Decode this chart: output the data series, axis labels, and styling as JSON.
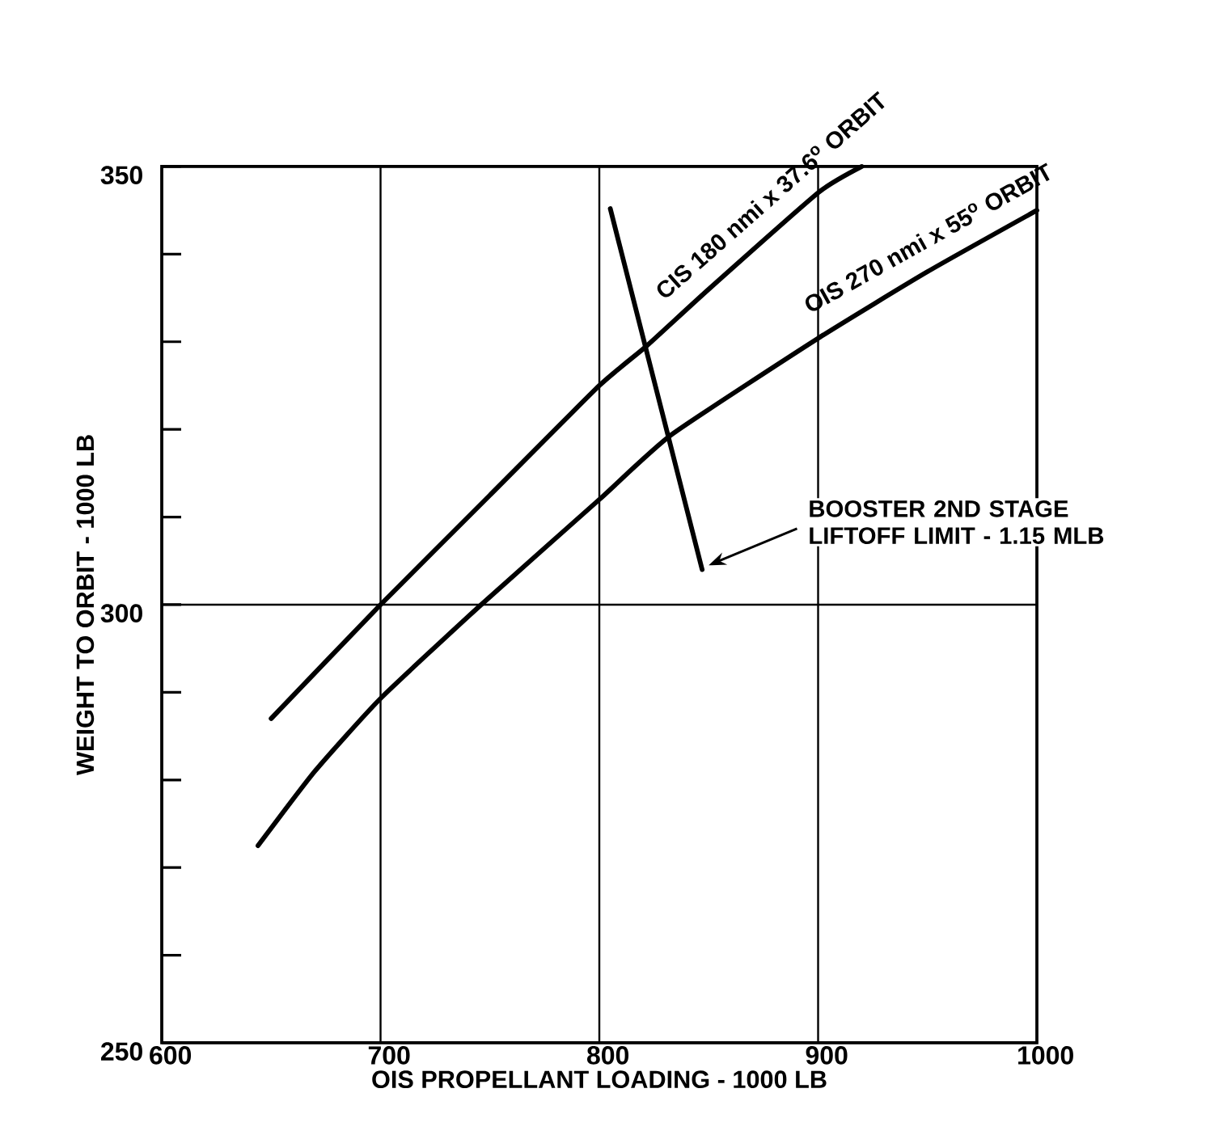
{
  "chart_data": {
    "type": "line",
    "xlabel": "OIS PROPELLANT LOADING - 1000 LB",
    "ylabel": "WEIGHT TO ORBIT - 1000 LB",
    "xlim": [
      600,
      1000
    ],
    "xticks": [
      600,
      700,
      800,
      900,
      1000
    ],
    "ylim": [
      250,
      350
    ],
    "yticks": [
      250,
      {
        "value": 260,
        "label": null
      },
      {
        "value": 270,
        "label": null
      },
      {
        "value": 280,
        "label": null
      },
      {
        "value": 290,
        "label": null
      },
      300,
      {
        "value": 310,
        "label": null
      },
      {
        "value": 320,
        "label": null
      },
      {
        "value": 330,
        "label": null
      },
      {
        "value": 340,
        "label": null
      },
      350
    ],
    "grid": true,
    "marker": "none",
    "line_style": "solid",
    "series": [
      {
        "name": "CIS 180 nmi x 37.6$^{o}$ ORBIT",
        "color": "#000000",
        "x": [
          650,
          700,
          750,
          800,
          821.5,
          850,
          900,
          920
        ],
        "values": [
          287,
          300,
          312.5,
          325,
          329.5,
          336,
          347,
          350
        ]
      },
      {
        "name": "OIS 270 nmi x 55$^{o}$ ORBIT",
        "color": "#000000",
        "x": [
          644,
          670,
          700,
          746,
          800,
          833,
          900,
          950,
          1000
        ],
        "values": [
          272.5,
          281,
          289.3,
          300,
          312,
          319.4,
          330.4,
          338,
          345
        ]
      },
      {
        "color": "#000000",
        "x": [
          805,
          847
        ],
        "values": [
          345.2,
          304
        ]
      }
    ],
    "annotations": [
      "BOOSTER 2ND STAGE LIFTOFF LIMIT - 1.15 MLB"
    ]
  }
}
